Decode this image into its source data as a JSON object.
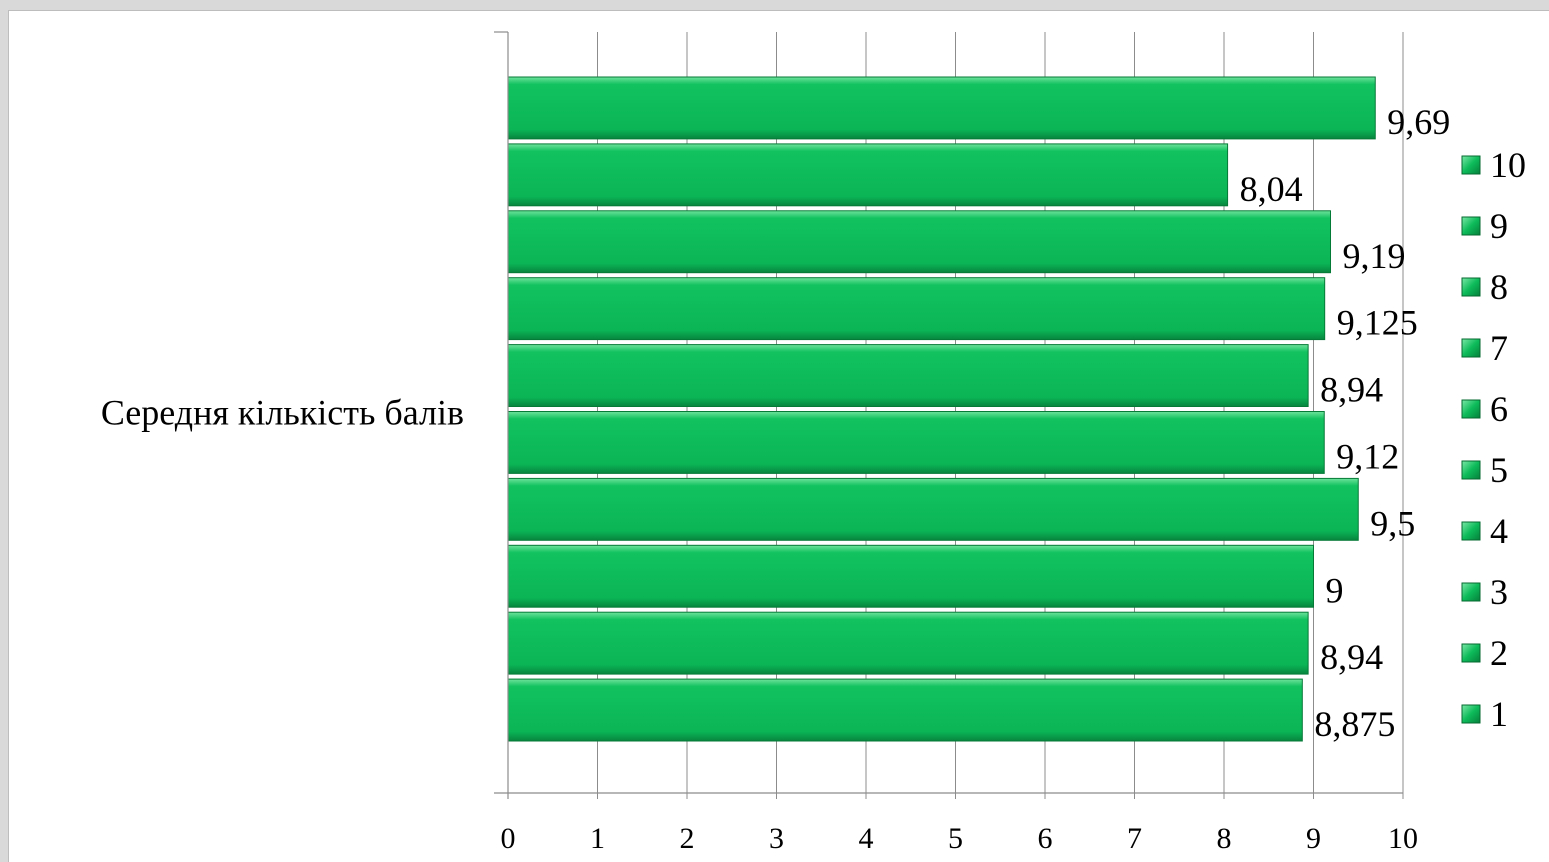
{
  "chart_data": {
    "type": "bar",
    "orientation": "horizontal",
    "category": "Середня кількість балів",
    "series": [
      {
        "name": "1",
        "value": 8.875,
        "label": "8,875"
      },
      {
        "name": "2",
        "value": 8.94,
        "label": "8,94"
      },
      {
        "name": "3",
        "value": 9,
        "label": "9"
      },
      {
        "name": "4",
        "value": 9.5,
        "label": "9,5"
      },
      {
        "name": "5",
        "value": 9.12,
        "label": "9,12"
      },
      {
        "name": "6",
        "value": 8.94,
        "label": "8,94"
      },
      {
        "name": "7",
        "value": 9.125,
        "label": "9,125"
      },
      {
        "name": "8",
        "value": 9.19,
        "label": "9,19"
      },
      {
        "name": "9",
        "value": 8.04,
        "label": "8,04"
      },
      {
        "name": "10",
        "value": 9.69,
        "label": "9,69"
      }
    ],
    "xlim": [
      0,
      10
    ],
    "x_ticks": [
      "0",
      "1",
      "2",
      "3",
      "4",
      "5",
      "6",
      "7",
      "8",
      "9",
      "10"
    ],
    "grid": "vertical",
    "legend_position": "right",
    "bar_color": "#0dbb5a"
  }
}
